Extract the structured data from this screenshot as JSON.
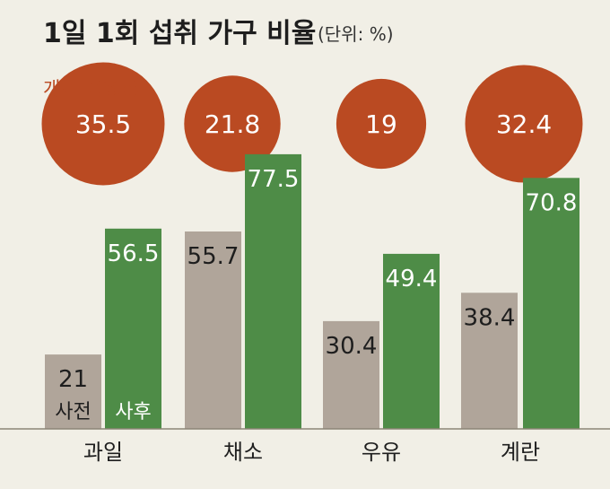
{
  "title": "1일 1회 섭취 가구 비율",
  "unit": "(단위: %)",
  "badge_label": "개선율(%p)",
  "colors": {
    "before": "#b0a59a",
    "after": "#4e8c47",
    "circle": "#ba4a22",
    "background": "#f1efe6"
  },
  "chart_data": {
    "type": "bar",
    "categories": [
      "과일",
      "채소",
      "우유",
      "계란"
    ],
    "series": [
      {
        "name": "사전",
        "values": [
          21,
          55.7,
          30.4,
          38.4
        ]
      },
      {
        "name": "사후",
        "values": [
          56.5,
          77.5,
          49.4,
          70.8
        ]
      }
    ],
    "improvement": [
      35.5,
      21.8,
      19,
      32.4
    ],
    "title": "1일 1회 섭취 가구 비율",
    "unit": "(단위: %)",
    "ylim": [
      0,
      100
    ],
    "grid": false
  }
}
